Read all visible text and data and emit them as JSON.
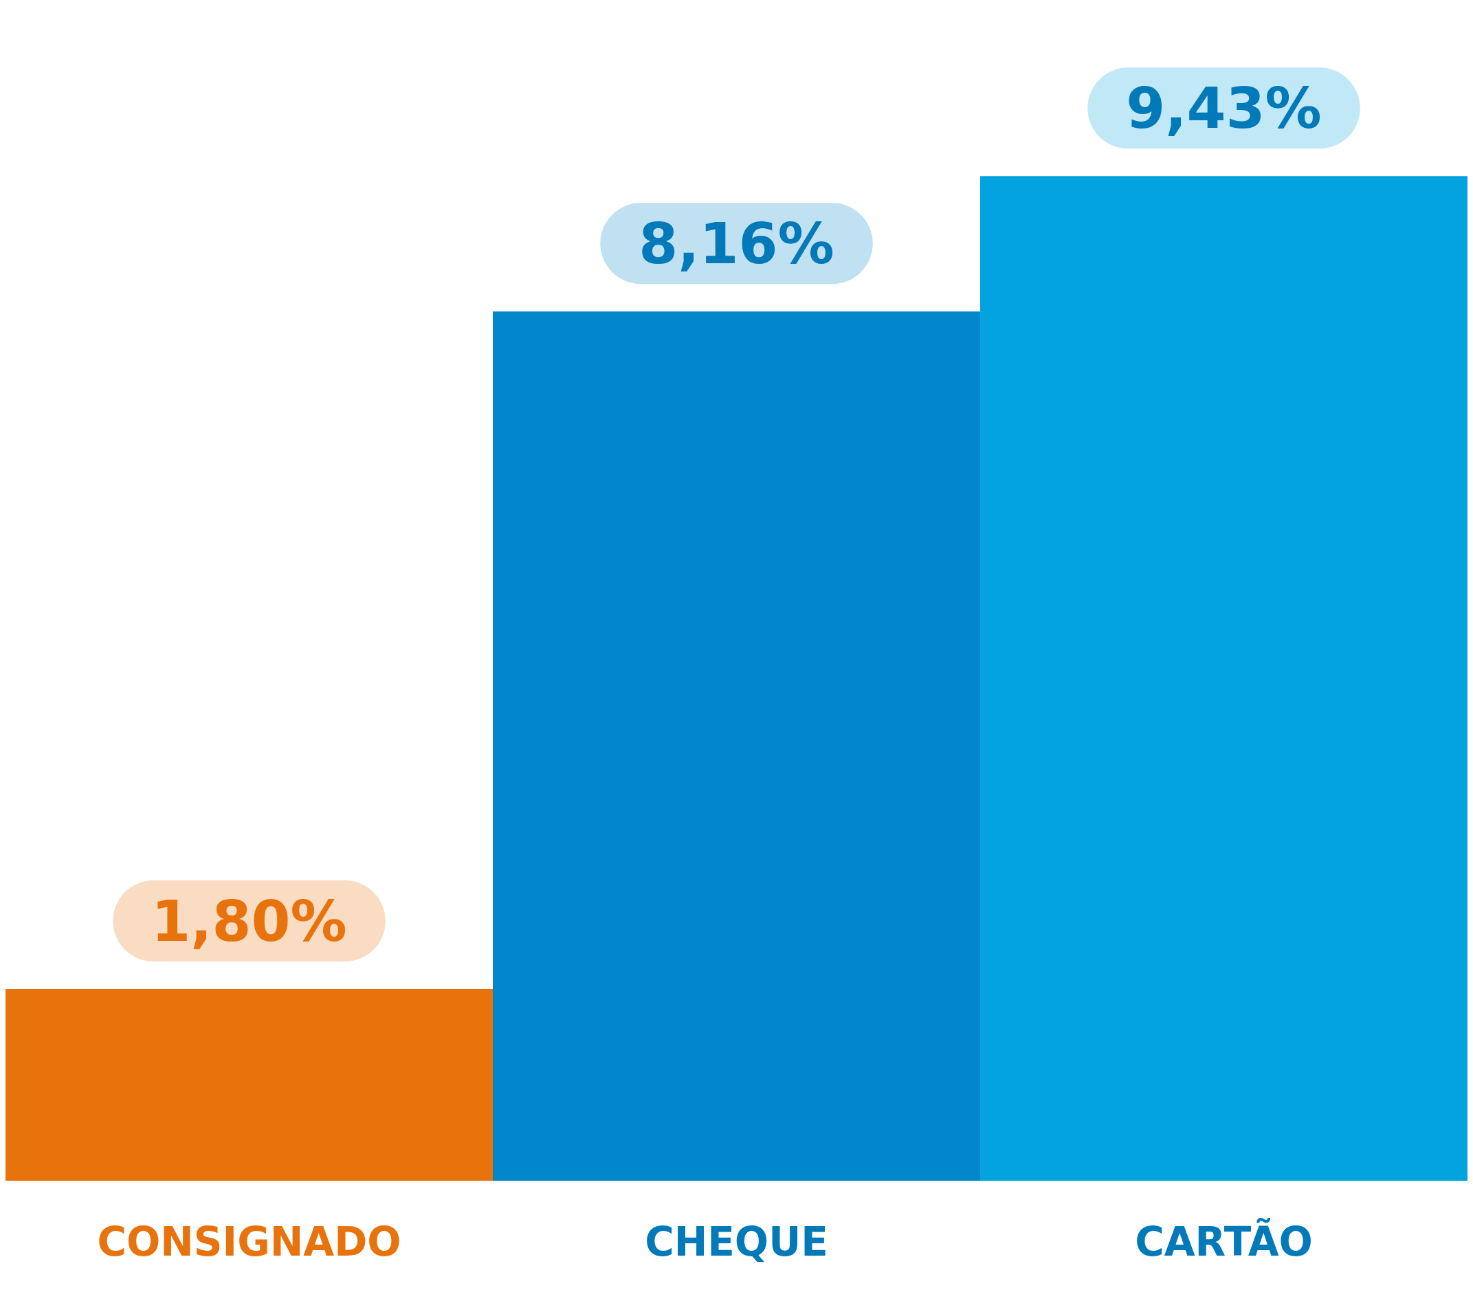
{
  "chart_data": {
    "type": "bar",
    "categories": [
      "CONSIGNADO",
      "CHEQUE",
      "CARTÃO"
    ],
    "values": [
      1.8,
      8.16,
      9.43
    ],
    "value_labels": [
      "1,80%",
      "8,16%",
      "9,43%"
    ],
    "colors": [
      "#e8730c",
      "#0286cc",
      "#03a3e0"
    ],
    "tick_labels": "x",
    "grid": false
  }
}
